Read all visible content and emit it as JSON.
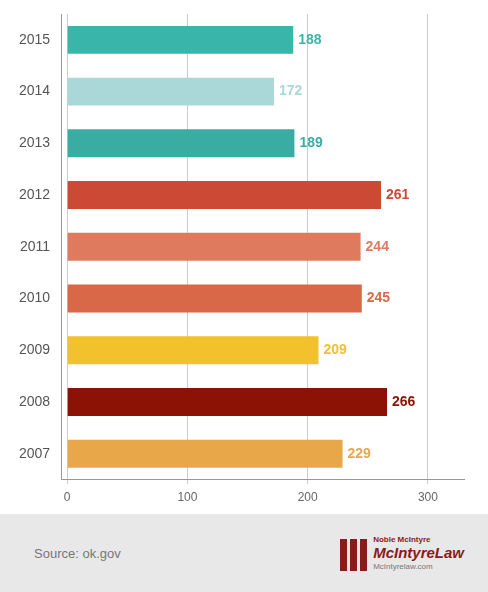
{
  "chart_data": {
    "type": "bar",
    "orientation": "horizontal",
    "categories": [
      "2015",
      "2014",
      "2013",
      "2012",
      "2011",
      "2010",
      "2009",
      "2008",
      "2007"
    ],
    "values": [
      188,
      172,
      189,
      261,
      244,
      245,
      209,
      266,
      229
    ],
    "colors": [
      "#3ab5aa",
      "#aad8d8",
      "#3aada3",
      "#cc4a35",
      "#e07a5f",
      "#d96848",
      "#f2c12e",
      "#8b1205",
      "#e8a84a"
    ],
    "xlim": [
      -5,
      330
    ],
    "xticks": [
      0,
      100,
      200,
      300
    ],
    "grid": true,
    "data_labels": true,
    "annotations": [
      "Source: ok.gov",
      "Noble McIntyre",
      "McIntyreLaw",
      "McIntyrelaw.com"
    ]
  }
}
